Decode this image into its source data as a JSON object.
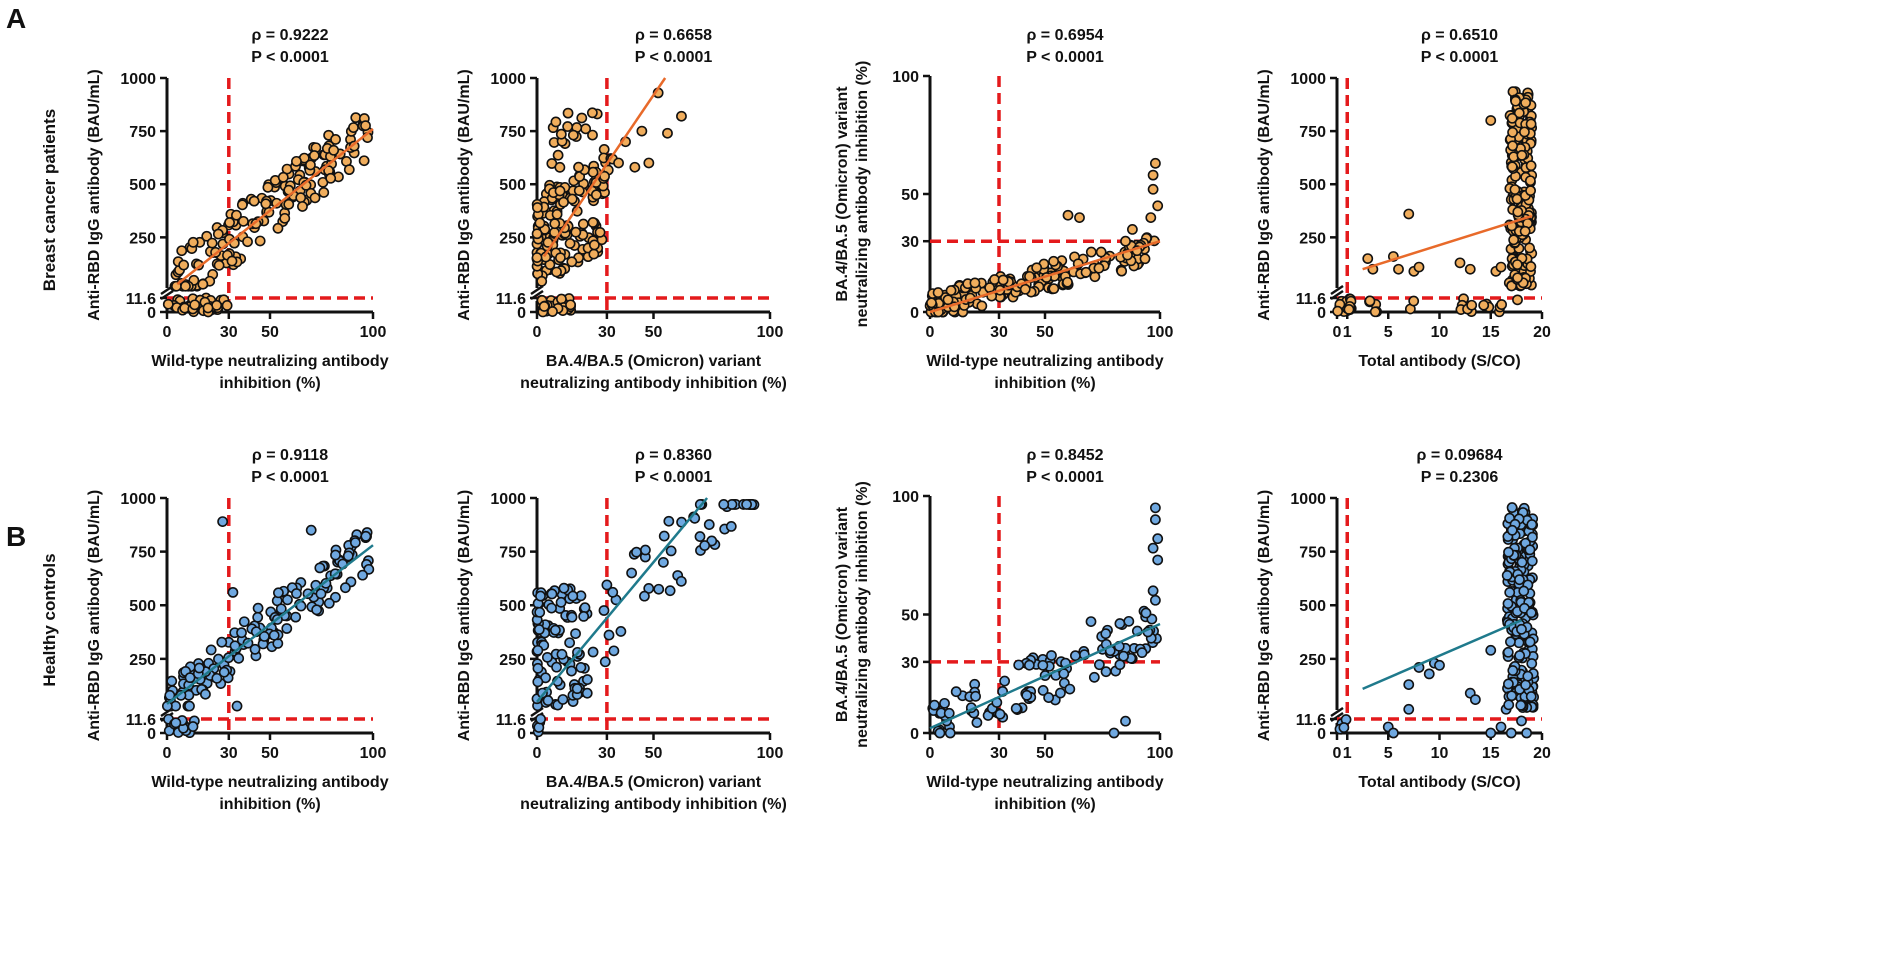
{
  "figure": {
    "panel_a": "A",
    "panel_b": "B",
    "row_labels": [
      "Breast cancer patients",
      "Healthy controls"
    ],
    "colors": {
      "cancer": "#f0ad5c",
      "control": "#6fa8e0",
      "fit_cancer": "#e86a2a",
      "fit_control": "#1f7a8c",
      "threshold": "#e41a1c",
      "marker_edge": "#111111"
    }
  },
  "chart_data": [
    {
      "id": "a1",
      "type": "scatter",
      "group": "cancer",
      "title_rho": "ρ = 0.9222",
      "title_p": "P < 0.0001",
      "xlabel": [
        "Wild-type neutralizing antibody",
        "inhibition (%)"
      ],
      "ylabel": [
        "Anti-RBD IgG antibody (BAU/mL)"
      ],
      "xlim": [
        0,
        100
      ],
      "xticks": [
        "0",
        "30",
        "50",
        "100"
      ],
      "xtick_values": [
        0,
        30,
        50,
        100
      ],
      "yaxis": "igg",
      "yticks": [
        "0",
        "11.6",
        "250",
        "500",
        "750",
        "1000"
      ],
      "vline": 30,
      "hline": 11.6,
      "fit": [
        [
          5,
          30
        ],
        [
          100,
          760
        ]
      ]
    },
    {
      "id": "a2",
      "type": "scatter",
      "group": "cancer",
      "title_rho": "ρ = 0.6658",
      "title_p": "P < 0.0001",
      "xlabel": [
        "BA.4/BA.5 (Omicron) variant",
        "neutralizing antibody inhibition (%)"
      ],
      "ylabel": [
        "Anti-RBD IgG antibody (BAU/mL)"
      ],
      "xlim": [
        0,
        100
      ],
      "xticks": [
        "0",
        "30",
        "50",
        "100"
      ],
      "xtick_values": [
        0,
        30,
        50,
        100
      ],
      "yaxis": "igg",
      "yticks": [
        "0",
        "11.6",
        "250",
        "500",
        "750",
        "1000"
      ],
      "vline": 30,
      "hline": 11.6,
      "fit": [
        [
          3,
          160
        ],
        [
          55,
          1000
        ]
      ]
    },
    {
      "id": "a3",
      "type": "scatter",
      "group": "cancer",
      "title_rho": "ρ = 0.6954",
      "title_p": "P < 0.0001",
      "xlabel": [
        "Wild-type neutralizing antibody",
        "inhibition (%)"
      ],
      "ylabel": [
        "BA.4/BA.5 (Omicron) variant",
        "neutralizing antibody inhibition (%)"
      ],
      "xlim": [
        0,
        100
      ],
      "xticks": [
        "0",
        "30",
        "50",
        "100"
      ],
      "xtick_values": [
        0,
        30,
        50,
        100
      ],
      "yaxis": "pct",
      "yticks": [
        "0",
        "30",
        "50",
        "100"
      ],
      "ytick_values": [
        0,
        30,
        50,
        100
      ],
      "vline": 30,
      "hline": 30,
      "fit": [
        [
          0,
          0
        ],
        [
          100,
          30
        ]
      ]
    },
    {
      "id": "a4",
      "type": "scatter",
      "group": "cancer",
      "title_rho": "ρ = 0.6510",
      "title_p": "P < 0.0001",
      "xlabel": [
        "Total antibody (S/CO)"
      ],
      "ylabel": [
        "Anti-RBD IgG antibody (BAU/mL)"
      ],
      "xlim": [
        0,
        20
      ],
      "xticks": [
        "0",
        "1",
        "5",
        "10",
        "15",
        "20"
      ],
      "xtick_values": [
        0,
        1,
        5,
        10,
        15,
        20
      ],
      "yaxis": "igg",
      "yticks": [
        "0",
        "11.6",
        "250",
        "500",
        "750",
        "1000"
      ],
      "vline": 1,
      "hline": 11.6,
      "fit": [
        [
          2.5,
          100
        ],
        [
          19,
          350
        ]
      ]
    },
    {
      "id": "b1",
      "type": "scatter",
      "group": "control",
      "title_rho": "ρ = 0.9118",
      "title_p": "P < 0.0001",
      "xlabel": [
        "Wild-type neutralizing antibody",
        "inhibition (%)"
      ],
      "ylabel": [
        "Anti-RBD IgG antibody (BAU/mL)"
      ],
      "xlim": [
        0,
        100
      ],
      "xticks": [
        "0",
        "30",
        "50",
        "100"
      ],
      "xtick_values": [
        0,
        30,
        50,
        100
      ],
      "yaxis": "igg",
      "yticks": [
        "0",
        "11.6",
        "250",
        "500",
        "750",
        "1000"
      ],
      "vline": 30,
      "hline": 11.6,
      "fit": [
        [
          0,
          40
        ],
        [
          100,
          780
        ]
      ]
    },
    {
      "id": "b2",
      "type": "scatter",
      "group": "control",
      "title_rho": "ρ = 0.8360",
      "title_p": "P < 0.0001",
      "xlabel": [
        "BA.4/BA.5 (Omicron) variant",
        "neutralizing antibody inhibition (%)"
      ],
      "ylabel": [
        "Anti-RBD IgG antibody (BAU/mL)"
      ],
      "xlim": [
        0,
        100
      ],
      "xticks": [
        "0",
        "30",
        "50",
        "100"
      ],
      "xtick_values": [
        0,
        30,
        50,
        100
      ],
      "yaxis": "igg",
      "yticks": [
        "0",
        "11.6",
        "250",
        "500",
        "750",
        "1000"
      ],
      "vline": 30,
      "hline": 11.6,
      "fit": [
        [
          0,
          50
        ],
        [
          73,
          1000
        ]
      ]
    },
    {
      "id": "b3",
      "type": "scatter",
      "group": "control",
      "title_rho": "ρ = 0.8452",
      "title_p": "P < 0.0001",
      "xlabel": [
        "Wild-type neutralizing antibody",
        "inhibition (%)"
      ],
      "ylabel": [
        "BA.4/BA.5 (Omicron) variant",
        "neutralizing antibody inhibition (%)"
      ],
      "xlim": [
        0,
        100
      ],
      "xticks": [
        "0",
        "30",
        "50",
        "100"
      ],
      "xtick_values": [
        0,
        30,
        50,
        100
      ],
      "yaxis": "pct",
      "yticks": [
        "0",
        "30",
        "50",
        "100"
      ],
      "ytick_values": [
        0,
        30,
        50,
        100
      ],
      "vline": 30,
      "hline": 30,
      "fit": [
        [
          0,
          2
        ],
        [
          100,
          46
        ]
      ]
    },
    {
      "id": "b4",
      "type": "scatter",
      "group": "control",
      "title_rho": "ρ = 0.09684",
      "title_p": "P = 0.2306",
      "xlabel": [
        "Total antibody (S/CO)"
      ],
      "ylabel": [
        "Anti-RBD IgG antibody (BAU/mL)"
      ],
      "xlim": [
        0,
        20
      ],
      "xticks": [
        "0",
        "1",
        "5",
        "10",
        "15",
        "20"
      ],
      "xtick_values": [
        0,
        1,
        5,
        10,
        15,
        20
      ],
      "yaxis": "igg",
      "yticks": [
        "0",
        "11.6",
        "250",
        "500",
        "750",
        "1000"
      ],
      "vline": 1,
      "hline": 11.6,
      "fit": [
        [
          2.5,
          110
        ],
        [
          18,
          430
        ]
      ]
    }
  ]
}
